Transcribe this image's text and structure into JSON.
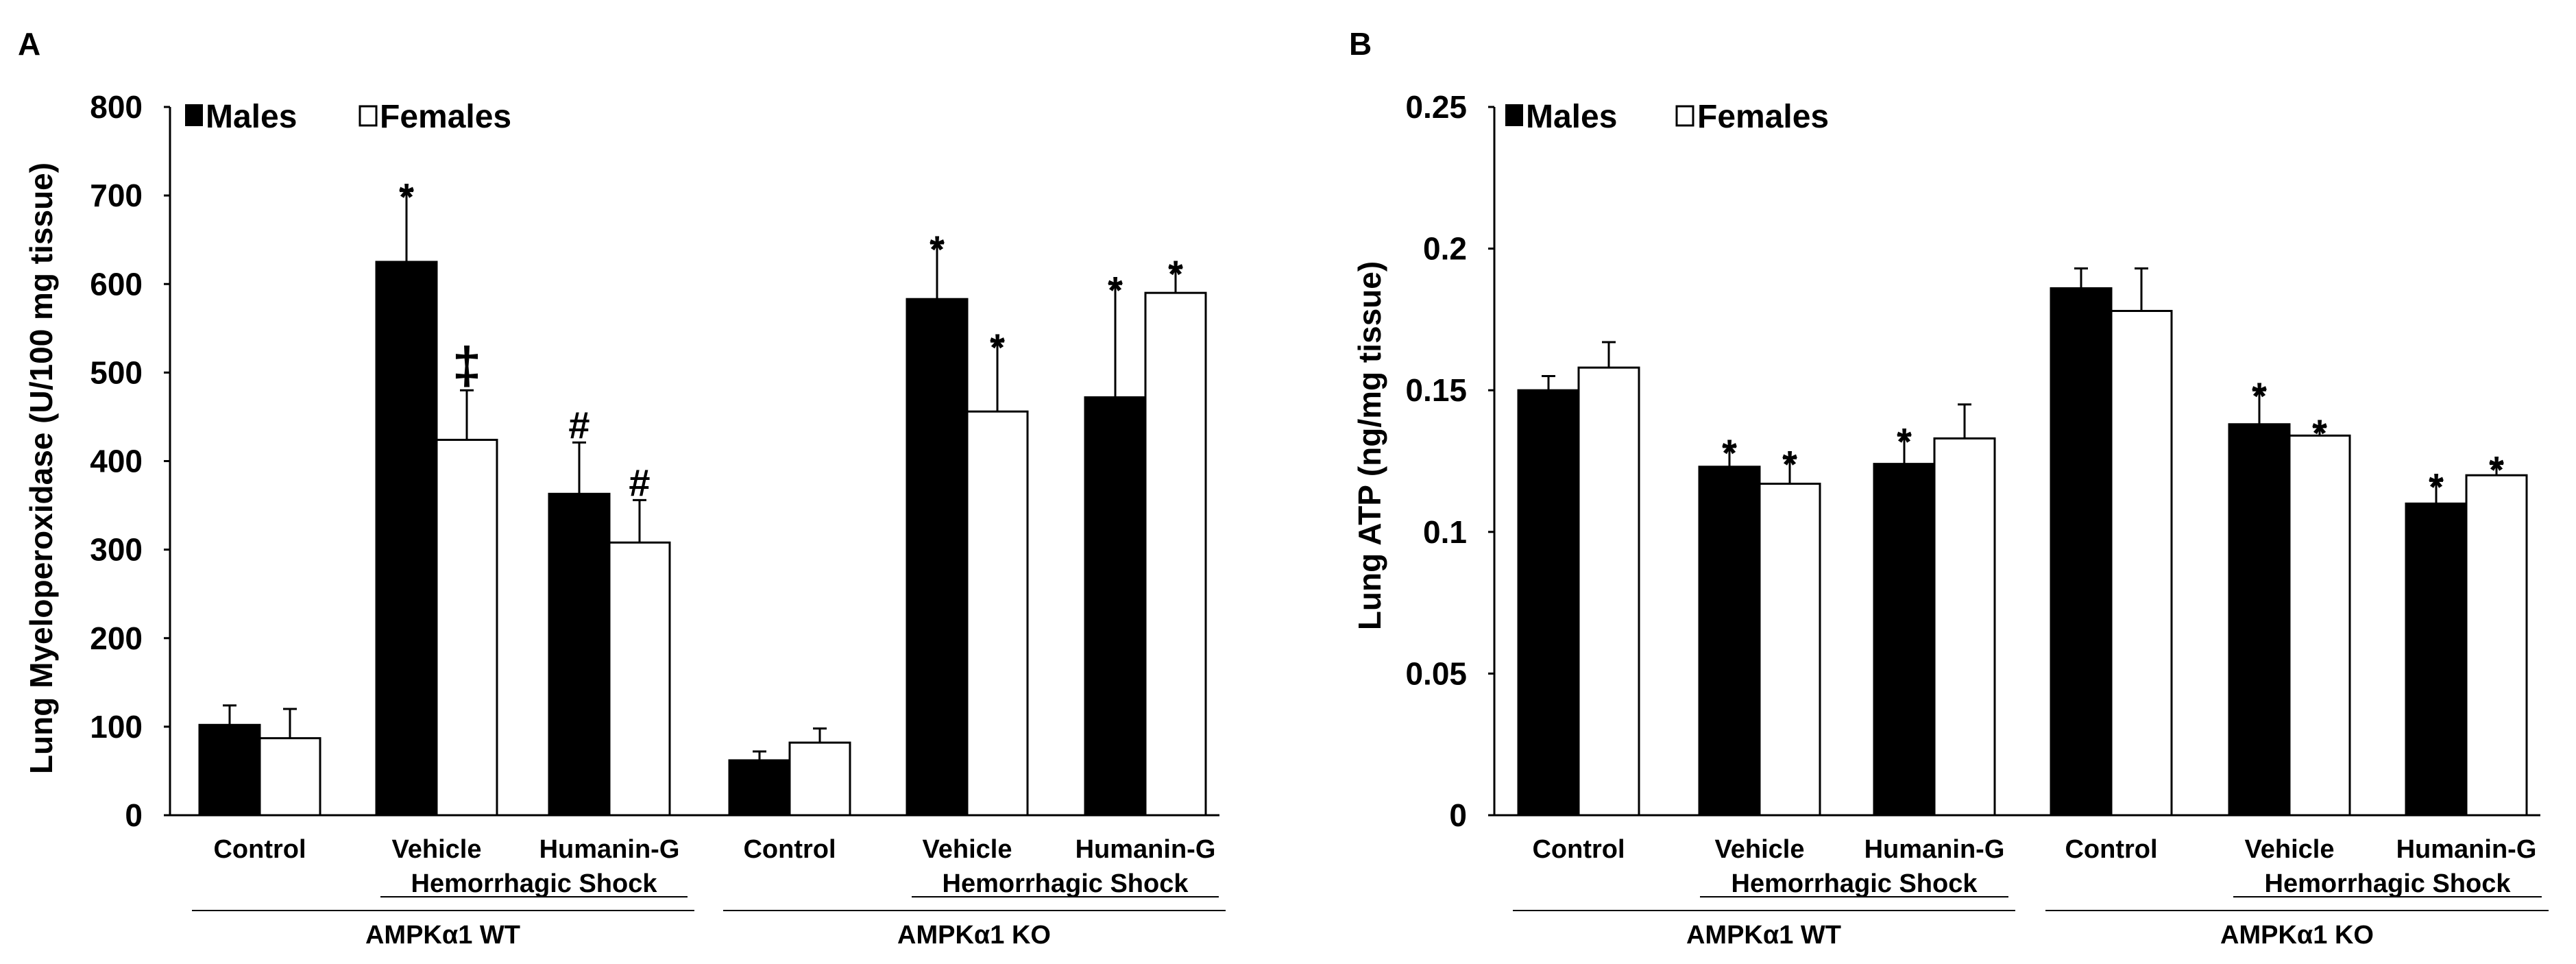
{
  "legend": {
    "males": "Males",
    "females": "Females"
  },
  "chart_data": [
    {
      "panel": "A",
      "type": "bar",
      "ylabel": "Lung Myeloperoxidase (U/100 mg tissue)",
      "ylim": [
        0,
        800
      ],
      "yticks": [
        0,
        100,
        200,
        300,
        400,
        500,
        600,
        700,
        800
      ],
      "ytick_labels": [
        "0",
        "100",
        "200",
        "300",
        "400",
        "500",
        "600",
        "700",
        "800"
      ],
      "categories": [
        "Control",
        "Vehicle",
        "Humanin-G",
        "Control",
        "Vehicle",
        "Humanin-G"
      ],
      "shock_label": "Hemorrhagic Shock",
      "genotypes": [
        "AMPKα1 WT",
        "AMPKα1 KO"
      ],
      "series": [
        {
          "name": "Males",
          "color": "#000000",
          "values": [
            102,
            625,
            363,
            62,
            583,
            472
          ],
          "errors": [
            22,
            80,
            58,
            10,
            63,
            128
          ],
          "marks": [
            "",
            "*",
            "#",
            "",
            "*",
            "*"
          ]
        },
        {
          "name": "Females",
          "color": "#ffffff",
          "values": [
            87,
            424,
            308,
            82,
            456,
            590
          ],
          "errors": [
            33,
            56,
            48,
            16,
            79,
            28
          ],
          "marks": [
            "",
            "‡",
            "#",
            "",
            "*",
            "*"
          ]
        }
      ]
    },
    {
      "panel": "B",
      "type": "bar",
      "ylabel": "Lung ATP (ng/mg tissue)",
      "ylim": [
        0,
        0.25
      ],
      "yticks": [
        0,
        0.05,
        0.1,
        0.15,
        0.2,
        0.25
      ],
      "ytick_labels": [
        "0",
        "0.05",
        "0.1",
        "0.15",
        "0.2",
        "0.25"
      ],
      "categories": [
        "Control",
        "Vehicle",
        "Humanin-G",
        "Control",
        "Vehicle",
        "Humanin-G"
      ],
      "shock_label": "Hemorrhagic Shock",
      "genotypes": [
        "AMPKα1 WT",
        "AMPKα1 KO"
      ],
      "series": [
        {
          "name": "Males",
          "color": "#000000",
          "values": [
            0.15,
            0.123,
            0.124,
            0.186,
            0.138,
            0.11
          ],
          "errors": [
            0.005,
            0.007,
            0.01,
            0.007,
            0.012,
            0.008
          ],
          "marks": [
            "",
            "*",
            "*",
            "",
            "*",
            "*"
          ]
        },
        {
          "name": "Females",
          "color": "#ffffff",
          "values": [
            0.158,
            0.117,
            0.133,
            0.178,
            0.134,
            0.12
          ],
          "errors": [
            0.009,
            0.009,
            0.012,
            0.015,
            0.003,
            0.004
          ],
          "marks": [
            "",
            "*",
            "",
            "",
            "*",
            "*"
          ]
        }
      ]
    }
  ]
}
